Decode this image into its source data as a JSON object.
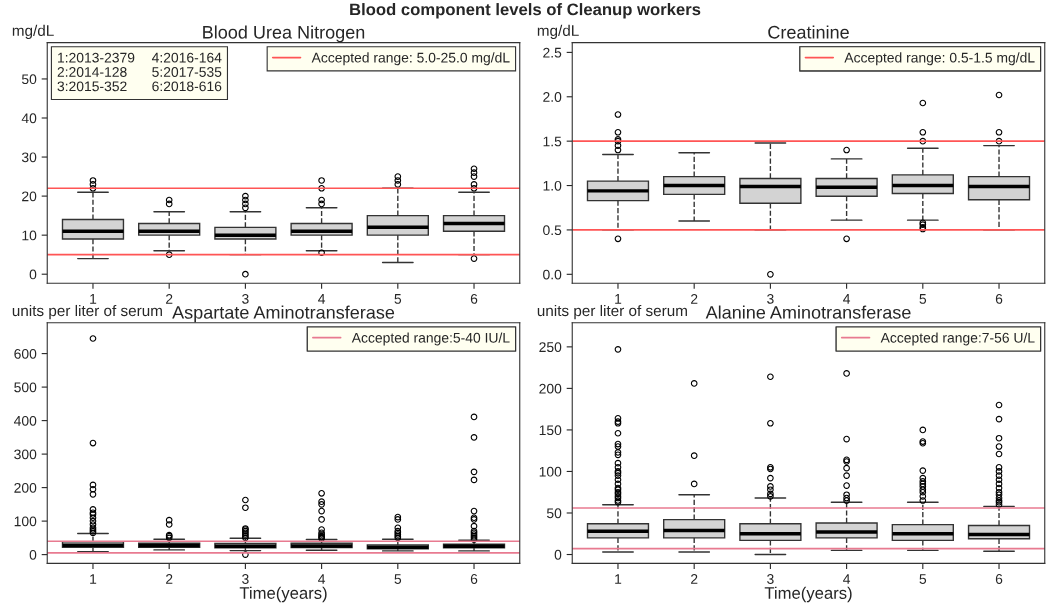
{
  "chart_data": [
    {
      "type": "box",
      "title": "Blood Urea Nitrogen",
      "ylabel": "mg/dL",
      "categories": [
        "1",
        "2",
        "3",
        "4",
        "5",
        "6"
      ],
      "ylim": [
        -2.3,
        59.3
      ],
      "yticks": [
        0,
        10,
        20,
        30,
        40,
        50
      ],
      "marker": "circle",
      "legend": "top right",
      "annotations": [
        "Blood component levels of Cleanup workers",
        "1:2013-2379",
        "2:2014-128",
        "3:2015-352",
        "4:2016-164",
        "5:2017-535",
        "6:2018-616"
      ],
      "ref_lines": [
        {
          "axis": "y",
          "value": 22,
          "color": "#ff5555"
        },
        {
          "axis": "y",
          "value": 5,
          "label": "Accepted range: 5.0-25.0 mg/dL",
          "color": "#ff5555"
        }
      ],
      "series": [
        {
          "color": "#d3d3d3",
          "boxes": [
            {
              "low": 4,
              "q1": 9,
              "median": 11,
              "q3": 14,
              "high": 21,
              "outliers": [
                22,
                23,
                24
              ]
            },
            {
              "low": 6,
              "q1": 10,
              "median": 11,
              "q3": 13,
              "high": 16,
              "outliers": [
                5,
                18,
                19
              ]
            },
            {
              "low": 5,
              "q1": 9,
              "median": 10,
              "q3": 12,
              "high": 16,
              "outliers": [
                0,
                17,
                18,
                19,
                20
              ]
            },
            {
              "low": 6,
              "q1": 10,
              "median": 11,
              "q3": 13,
              "high": 17,
              "outliers": [
                5.5,
                18,
                19,
                22,
                24
              ]
            },
            {
              "low": 3,
              "q1": 10,
              "median": 12,
              "q3": 15,
              "high": 22,
              "outliers": [
                23,
                24,
                25
              ]
            },
            {
              "low": 5,
              "q1": 11,
              "median": 13,
              "q3": 15,
              "high": 21,
              "outliers": [
                4,
                22,
                23,
                25,
                26,
                27
              ]
            }
          ]
        }
      ]
    },
    {
      "type": "box",
      "title": "Creatinine",
      "ylabel": "mg/dL",
      "categories": [
        "1",
        "2",
        "3",
        "4",
        "5",
        "6"
      ],
      "ylim": [
        -0.1,
        2.61
      ],
      "yticks": [
        {
          "value": 0,
          "label": "0.0"
        },
        0.5,
        {
          "value": 1,
          "label": "1.0"
        },
        1.5,
        {
          "value": 2,
          "label": "2.0"
        },
        2.5
      ],
      "marker": "circle",
      "legend": "top right",
      "ref_lines": [
        {
          "axis": "y",
          "value": 1.5,
          "color": "#ff5555"
        },
        {
          "axis": "y",
          "value": 0.5,
          "label": "Accepted range: 0.5-1.5 mg/dL",
          "color": "#ff5555"
        }
      ],
      "series": [
        {
          "color": "#d3d3d3",
          "boxes": [
            {
              "low": 0.5,
              "q1": 0.83,
              "median": 0.94,
              "q3": 1.05,
              "high": 1.35,
              "outliers": [
                0.4,
                1.4,
                1.45,
                1.5,
                1.52,
                1.6,
                1.8
              ]
            },
            {
              "low": 0.6,
              "q1": 0.9,
              "median": 1.0,
              "q3": 1.1,
              "high": 1.37
            },
            {
              "low": 0.5,
              "q1": 0.8,
              "median": 0.99,
              "q3": 1.08,
              "high": 1.48,
              "outliers": [
                0
              ]
            },
            {
              "low": 0.61,
              "q1": 0.88,
              "median": 0.98,
              "q3": 1.08,
              "high": 1.3,
              "outliers": [
                0.4,
                1.4
              ]
            },
            {
              "low": 0.61,
              "q1": 0.91,
              "median": 1.0,
              "q3": 1.12,
              "high": 1.42,
              "outliers": [
                0.51,
                0.53,
                0.56,
                0.58,
                1.5,
                1.6,
                1.93
              ]
            },
            {
              "low": 0.5,
              "q1": 0.84,
              "median": 0.99,
              "q3": 1.1,
              "high": 1.45,
              "outliers": [
                1.5,
                1.6,
                2.02
              ]
            }
          ]
        }
      ]
    },
    {
      "type": "box",
      "title": "Aspartate Aminotransferase",
      "ylabel": "units per liter of serum",
      "xlabel": "Time(years)",
      "categories": [
        "1",
        "2",
        "3",
        "4",
        "5",
        "6"
      ],
      "ylim": [
        -26,
        692
      ],
      "yticks": [
        0,
        100,
        200,
        300,
        400,
        500,
        600
      ],
      "marker": "circle",
      "legend": "top right",
      "ref_lines": [
        {
          "axis": "y",
          "value": 40,
          "color": "#e87a90"
        },
        {
          "axis": "y",
          "value": 5,
          "label": "Accepted range:5-40 IU/L",
          "color": "#e87a90"
        }
      ],
      "series": [
        {
          "color": "#d3d3d3",
          "boxes": [
            {
              "low": 9,
              "q1": 22,
              "median": 28,
              "q3": 38,
              "high": 63,
              "outliers": [
                65,
                70,
                75,
                80,
                90,
                100,
                110,
                120,
                125,
                135,
                180,
                195,
                208,
                333,
                645
              ]
            },
            {
              "low": 14,
              "q1": 22,
              "median": 27,
              "q3": 34,
              "high": 46,
              "outliers": [
                50,
                55,
                58,
                90,
                103
              ]
            },
            {
              "low": 12,
              "q1": 20,
              "median": 25,
              "q3": 33,
              "high": 49,
              "outliers": [
                0,
                50,
                55,
                60,
                65,
                70,
                75,
                78,
                140,
                163
              ]
            },
            {
              "low": 13,
              "q1": 21,
              "median": 26,
              "q3": 34,
              "high": 45,
              "outliers": [
                48,
                52,
                55,
                60,
                65,
                75,
                105,
                130,
                150,
                158,
                183
              ]
            },
            {
              "low": 11,
              "q1": 17,
              "median": 22,
              "q3": 29,
              "high": 46,
              "outliers": [
                50,
                55,
                60,
                65,
                70,
                80,
                105,
                112
              ]
            },
            {
              "low": 11,
              "q1": 20,
              "median": 25,
              "q3": 31,
              "high": 43,
              "outliers": [
                45,
                50,
                55,
                60,
                65,
                70,
                85,
                105,
                110,
                130,
                223,
                247,
                350,
                411
              ]
            }
          ]
        }
      ]
    },
    {
      "type": "box",
      "title": "Alanine Aminotransferase",
      "ylabel": "units per liter of serum",
      "xlabel": "Time(years)",
      "categories": [
        "1",
        "2",
        "3",
        "4",
        "5",
        "6"
      ],
      "ylim": [
        -10.6,
        279
      ],
      "yticks": [
        0,
        50,
        100,
        150,
        200,
        250
      ],
      "marker": "circle",
      "legend": "top right",
      "ref_lines": [
        {
          "axis": "y",
          "value": 56,
          "color": "#e87a90"
        },
        {
          "axis": "y",
          "value": 7,
          "label": "Accepted range:7-56 U/L",
          "color": "#e87a90"
        }
      ],
      "series": [
        {
          "color": "#d3d3d3",
          "boxes": [
            {
              "low": 3,
              "q1": 20,
              "median": 28,
              "q3": 37,
              "high": 60,
              "outliers": [
                63,
                65,
                68,
                70,
                73,
                75,
                78,
                80,
                85,
                90,
                95,
                98,
                100,
                105,
                110,
                120,
                123,
                130,
                133,
                146,
                158,
                160,
                164,
                247
              ]
            },
            {
              "low": 3,
              "q1": 20,
              "median": 29,
              "q3": 42,
              "high": 72,
              "outliers": [
                85,
                119,
                206
              ]
            },
            {
              "low": 0,
              "q1": 17,
              "median": 25,
              "q3": 37,
              "high": 68,
              "outliers": [
                70,
                73,
                78,
                82,
                92,
                103,
                105,
                158,
                214
              ]
            },
            {
              "low": 5,
              "q1": 20,
              "median": 27,
              "q3": 38,
              "high": 63,
              "outliers": [
                65,
                68,
                72,
                83,
                95,
                104,
                112,
                114,
                139,
                218
              ]
            },
            {
              "low": 5,
              "q1": 17,
              "median": 25,
              "q3": 36,
              "high": 63,
              "outliers": [
                65,
                70,
                75,
                78,
                82,
                85,
                88,
                92,
                101,
                134,
                136,
                150
              ]
            },
            {
              "low": 4,
              "q1": 19,
              "median": 24,
              "q3": 35,
              "high": 58,
              "outliers": [
                60,
                63,
                65,
                68,
                72,
                75,
                80,
                85,
                90,
                95,
                100,
                105,
                121,
                130,
                140,
                163,
                180
              ]
            }
          ]
        }
      ]
    }
  ]
}
